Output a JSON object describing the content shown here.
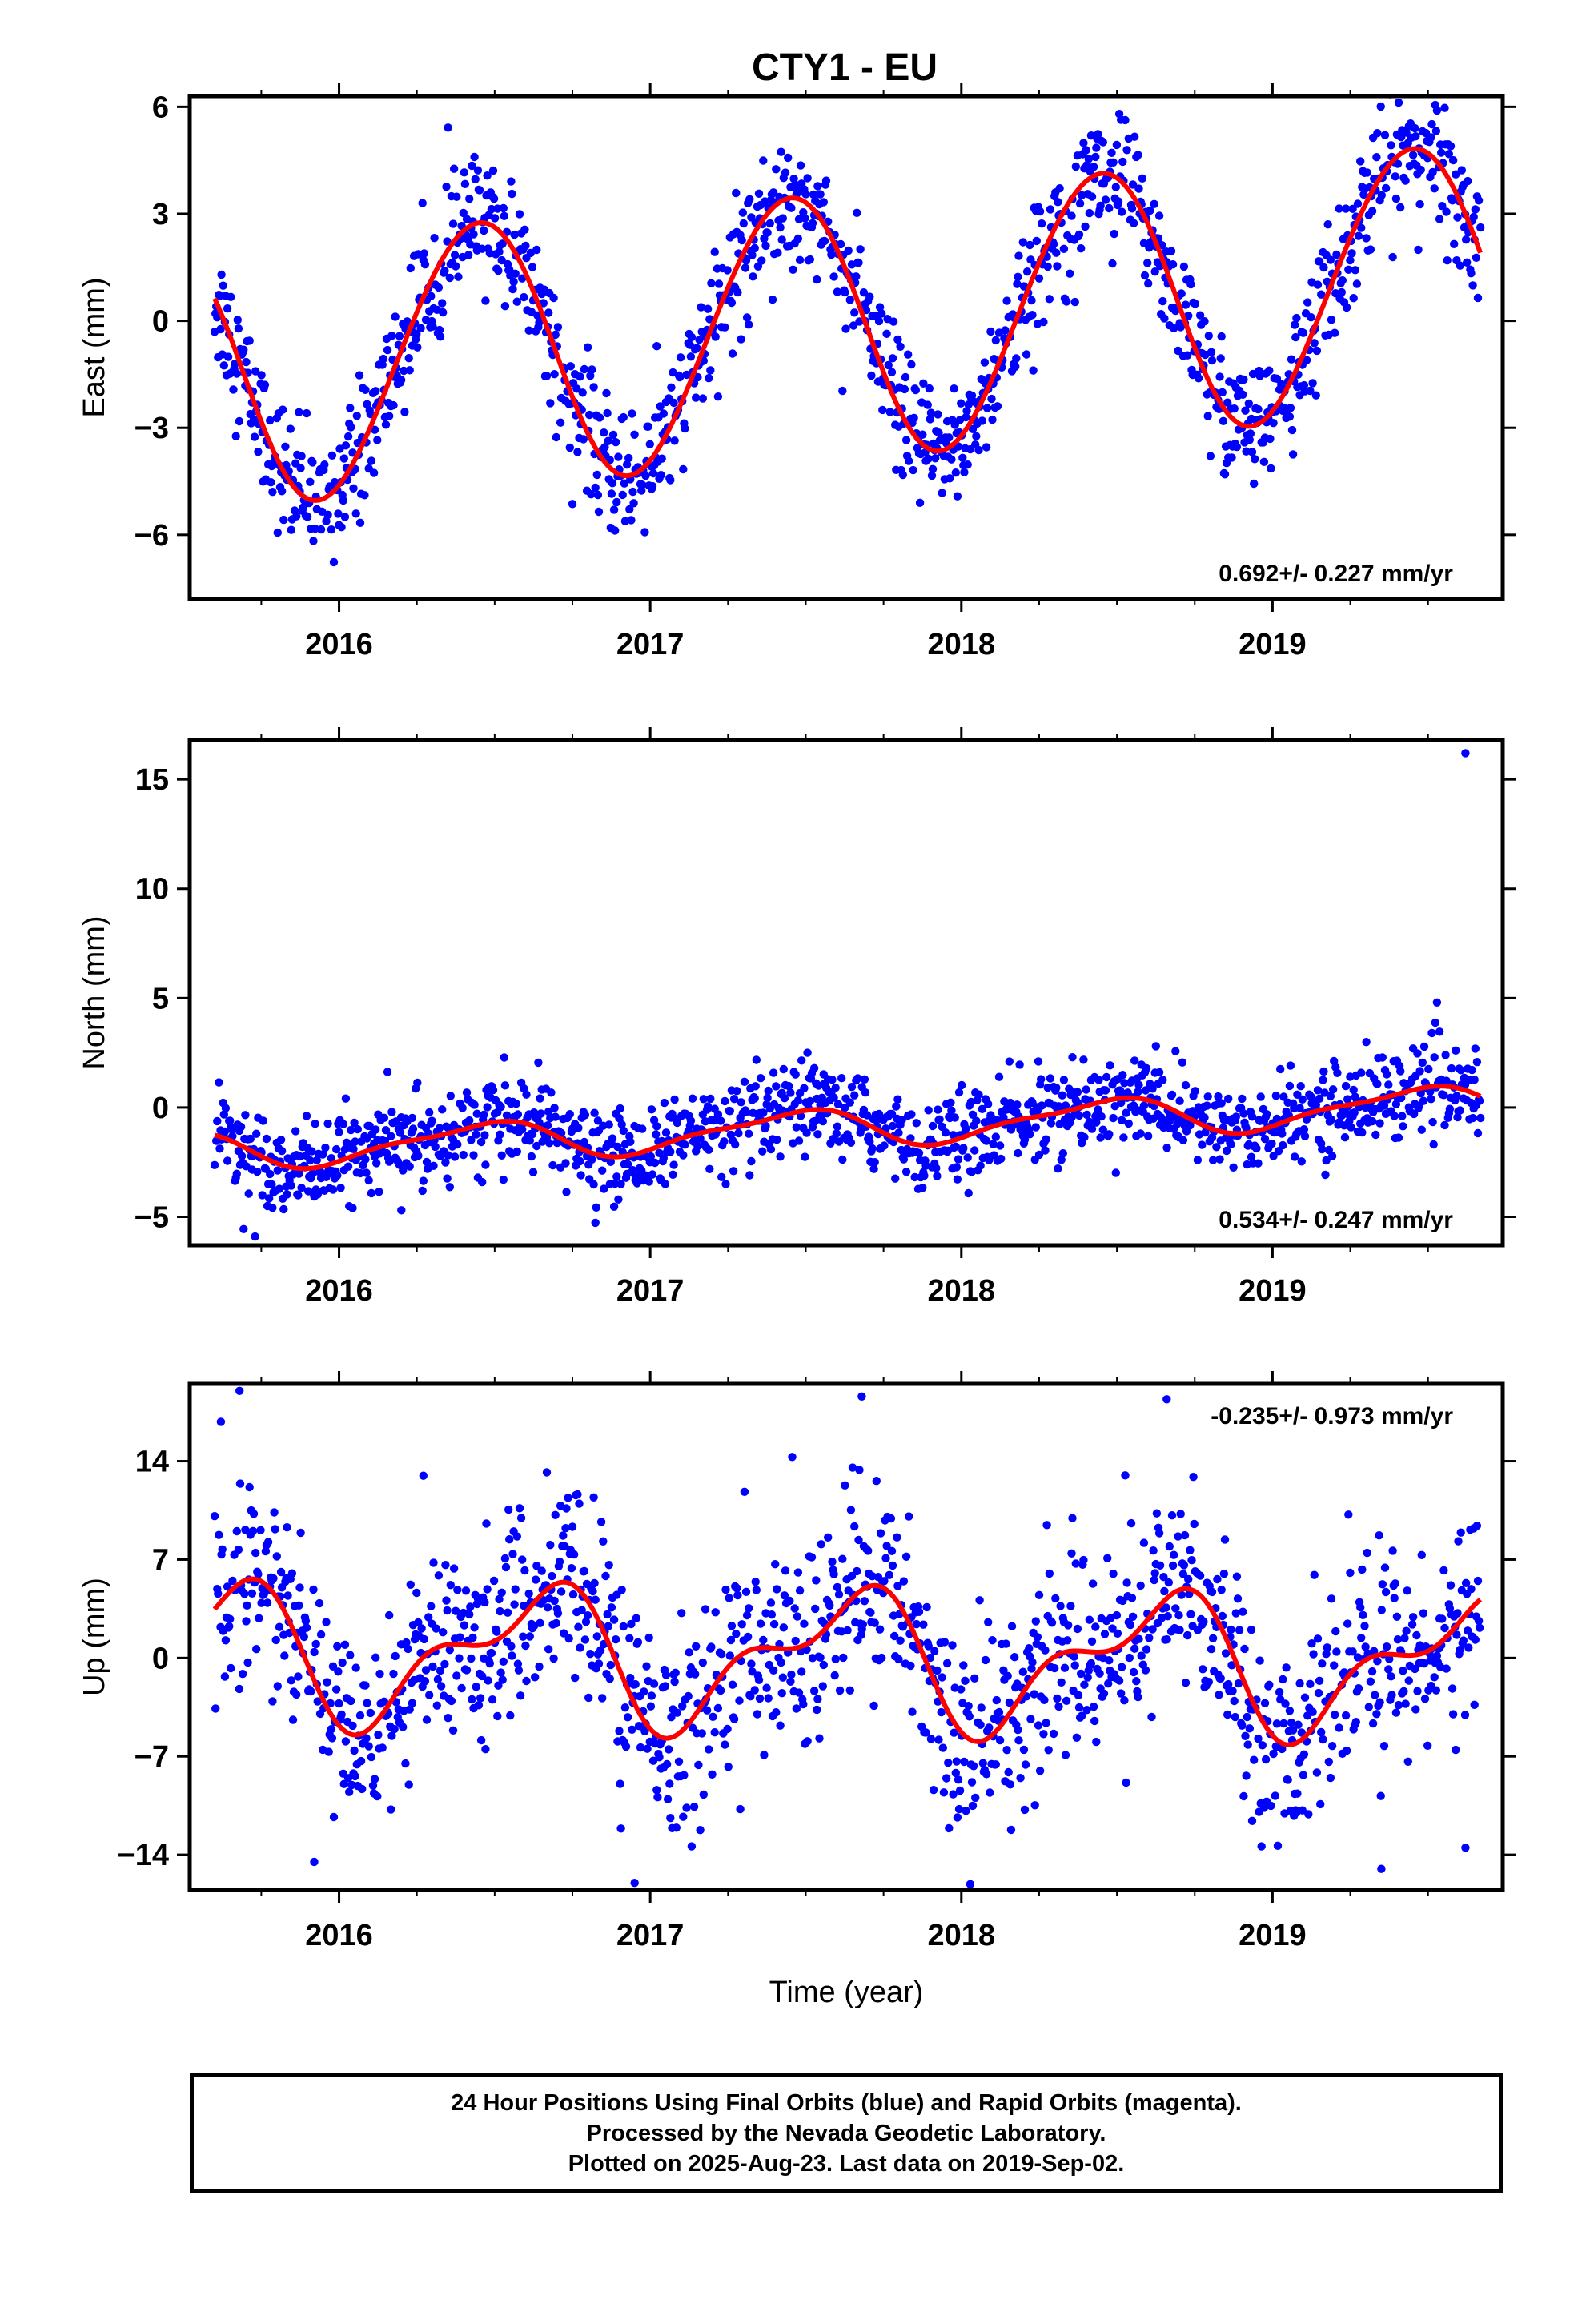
{
  "title": "CTY1 - EU",
  "xlabel": "Time (year)",
  "footer": {
    "line1": "24 Hour Positions Using Final Orbits (blue) and Rapid Orbits (magenta).",
    "line2": "Processed by the Nevada Geodetic Laboratory.",
    "line3": "Plotted on 2025-Aug-23. Last data on 2019-Sep-02."
  },
  "colors": {
    "final_orbit_points": "#0000ff",
    "fit_curve": "#ff0000",
    "frame": "#000000"
  },
  "chart_data": [
    {
      "type": "scatter",
      "ylabel": "East (mm)",
      "rate_label": "0.692+/- 0.227 mm/yr",
      "rate_position": "bottom-right",
      "xlim": [
        2015.52,
        2019.74
      ],
      "ylim": [
        -7.8,
        6.3
      ],
      "yticks": [
        -6,
        -3,
        0,
        3,
        6
      ],
      "ytick_labels": [
        "−6",
        "−3",
        "0",
        "3",
        "6"
      ],
      "xticks": [
        2016,
        2017,
        2018,
        2019
      ],
      "xtick_labels": [
        "2016",
        "2017",
        "2018",
        "2019"
      ],
      "grid": false,
      "series": [
        {
          "marker": "points",
          "color": "#0000ff",
          "x_start": 2015.6,
          "x_end": 2019.67,
          "model": {
            "offset": -0.1,
            "rate": 0.692,
            "annual_amp": 3.7,
            "peak_phase": 0.44,
            "semi_amp": 0.15,
            "scatter_sd": 0.9
          }
        },
        {
          "marker": "line",
          "color": "#ff0000",
          "x_start": 2015.6,
          "x_end": 2019.67,
          "model": {
            "offset": -0.1,
            "rate": 0.692,
            "annual_amp": 3.7,
            "peak_phase": 0.44,
            "semi_amp": 0.15
          }
        }
      ]
    },
    {
      "type": "scatter",
      "ylabel": "North (mm)",
      "rate_label": "0.534+/- 0.247 mm/yr",
      "rate_position": "bottom-right",
      "xlim": [
        2015.52,
        2019.74
      ],
      "ylim": [
        -6.3,
        16.8
      ],
      "yticks": [
        -5,
        0,
        5,
        10,
        15
      ],
      "ytick_labels": [
        "−5",
        "0",
        "5",
        "10",
        "15"
      ],
      "xticks": [
        2016,
        2017,
        2018,
        2019
      ],
      "xtick_labels": [
        "2016",
        "2017",
        "2018",
        "2019"
      ],
      "grid": false,
      "series": [
        {
          "marker": "points",
          "color": "#0000ff",
          "x_start": 2015.6,
          "x_end": 2019.67,
          "model": {
            "offset": -0.9,
            "rate": 0.534,
            "annual_amp": 0.8,
            "peak_phase": 0.45,
            "semi_amp": 0.25,
            "scatter_sd": 1.0
          },
          "outliers": [
            [
              2019.62,
              16.2
            ],
            [
              2015.73,
              -5.9
            ],
            [
              2016.2,
              -4.7
            ]
          ]
        },
        {
          "marker": "line",
          "color": "#ff0000",
          "x_start": 2015.6,
          "x_end": 2019.67,
          "model": {
            "offset": -0.9,
            "rate": 0.534,
            "annual_amp": 0.8,
            "peak_phase": 0.45,
            "semi_amp": 0.25
          }
        }
      ]
    },
    {
      "type": "scatter",
      "ylabel": "Up (mm)",
      "rate_label": "-0.235+/- 0.973 mm/yr",
      "rate_position": "top-right",
      "xlim": [
        2015.52,
        2019.74
      ],
      "ylim": [
        -16.5,
        19.5
      ],
      "yticks": [
        -14,
        -7,
        0,
        7,
        14
      ],
      "ytick_labels": [
        "−14",
        "−7",
        "0",
        "7",
        "14"
      ],
      "xticks": [
        2016,
        2017,
        2018,
        2019
      ],
      "xtick_labels": [
        "2016",
        "2017",
        "2018",
        "2019"
      ],
      "grid": false,
      "series": [
        {
          "marker": "points",
          "color": "#0000ff",
          "x_start": 2015.6,
          "x_end": 2019.67,
          "model": {
            "offset": 0.0,
            "rate": -0.235,
            "annual_amp": 4.2,
            "peak_phase": 0.62,
            "semi_amp": 2.2,
            "scatter_sd": 3.6
          },
          "outliers": [
            [
              2015.68,
              19.0
            ],
            [
              2015.62,
              16.8
            ],
            [
              2017.68,
              18.6
            ],
            [
              2018.66,
              18.4
            ],
            [
              2016.95,
              -16.0
            ],
            [
              2019.35,
              -15.0
            ],
            [
              2019.62,
              -13.5
            ],
            [
              2015.92,
              -14.5
            ]
          ]
        },
        {
          "marker": "line",
          "color": "#ff0000",
          "x_start": 2015.6,
          "x_end": 2019.67,
          "model": {
            "offset": 0.0,
            "rate": -0.235,
            "annual_amp": 4.2,
            "peak_phase": 0.62,
            "semi_amp": 2.2
          }
        }
      ]
    }
  ]
}
